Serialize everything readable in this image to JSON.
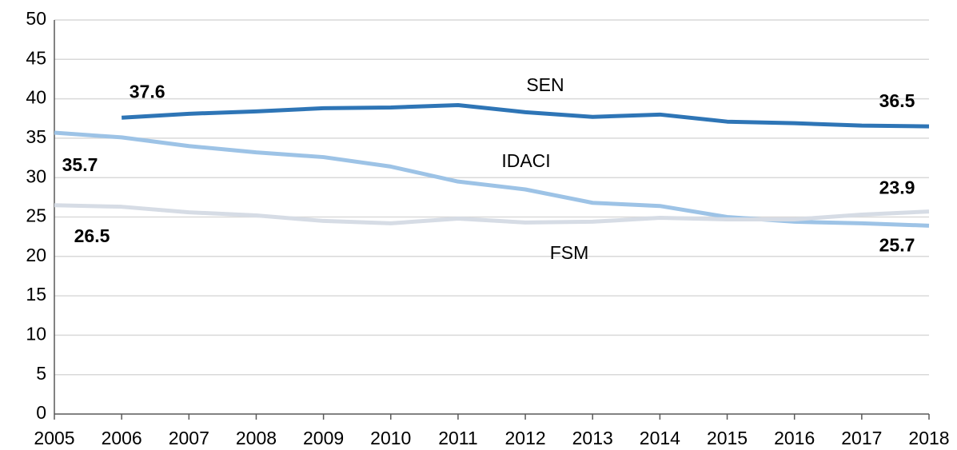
{
  "chart_data": {
    "type": "line",
    "x": [
      2005,
      2006,
      2007,
      2008,
      2009,
      2010,
      2011,
      2012,
      2013,
      2014,
      2015,
      2016,
      2017,
      2018
    ],
    "xlim": [
      2005,
      2018
    ],
    "xticks": [
      2005,
      2006,
      2007,
      2008,
      2009,
      2010,
      2011,
      2012,
      2013,
      2014,
      2015,
      2016,
      2017,
      2018
    ],
    "ylim": [
      0,
      50
    ],
    "yticks": [
      0,
      5,
      10,
      15,
      20,
      25,
      30,
      35,
      40,
      45,
      50
    ],
    "grid": true,
    "series": [
      {
        "name": "SEN",
        "color": "#2e75b6",
        "values": [
          null,
          37.6,
          38.1,
          38.4,
          38.8,
          38.9,
          39.2,
          38.3,
          37.7,
          38.0,
          37.1,
          36.9,
          36.6,
          36.5
        ],
        "value_labels": [
          null,
          "37.6",
          null,
          null,
          null,
          null,
          null,
          null,
          null,
          null,
          null,
          null,
          null,
          "36.5"
        ]
      },
      {
        "name": "IDACI",
        "color": "#9dc3e6",
        "values": [
          35.7,
          35.1,
          34.0,
          33.2,
          32.6,
          31.4,
          29.5,
          28.5,
          26.8,
          26.4,
          25.0,
          24.4,
          24.2,
          23.9
        ],
        "value_labels": [
          "35.7",
          null,
          null,
          null,
          null,
          null,
          null,
          null,
          null,
          null,
          null,
          null,
          null,
          "23.9"
        ]
      },
      {
        "name": "FSM",
        "color": "#d6dce5",
        "values": [
          26.5,
          26.3,
          25.6,
          25.2,
          24.5,
          24.2,
          24.8,
          24.3,
          24.4,
          24.9,
          24.7,
          24.7,
          25.3,
          25.7
        ],
        "value_labels": [
          "26.5",
          null,
          null,
          null,
          null,
          null,
          null,
          null,
          null,
          null,
          null,
          null,
          null,
          "25.7"
        ]
      }
    ]
  }
}
